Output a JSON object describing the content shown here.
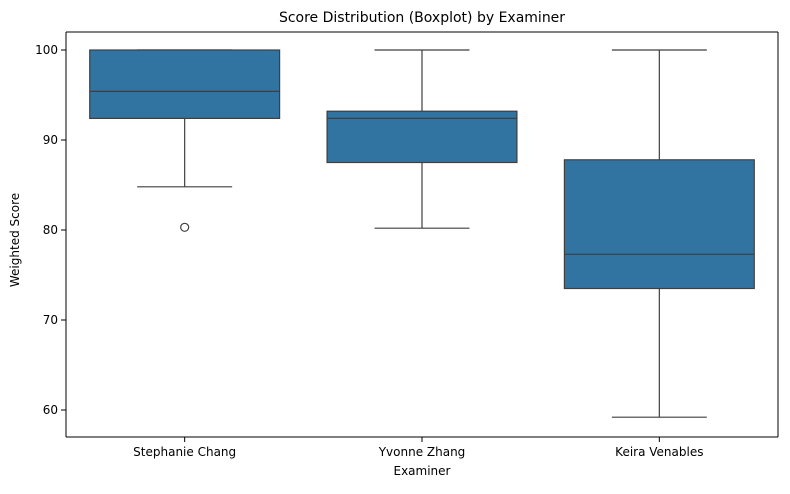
{
  "chart_data": {
    "type": "boxplot",
    "title": "Score Distribution (Boxplot) by Examiner",
    "xlabel": "Examiner",
    "ylabel": "Weighted Score",
    "ylim": [
      57.0,
      102.0
    ],
    "yticks": [
      60,
      70,
      80,
      90,
      100
    ],
    "grid": false,
    "legend": "none",
    "color": "#3274a1",
    "edge_color": "#3f3f3f",
    "categories": [
      "Stephanie Chang",
      "Yvonne Zhang",
      "Keira Venables"
    ],
    "boxes": [
      {
        "category": "Stephanie Chang",
        "whisker_low": 84.8,
        "q1": 92.4,
        "median": 95.4,
        "q3": 100.0,
        "whisker_high": 100.0,
        "outliers": [
          80.3
        ]
      },
      {
        "category": "Yvonne Zhang",
        "whisker_low": 80.2,
        "q1": 87.5,
        "median": 92.4,
        "q3": 93.2,
        "whisker_high": 100.0,
        "outliers": []
      },
      {
        "category": "Keira Venables",
        "whisker_low": 59.2,
        "q1": 73.5,
        "median": 77.3,
        "q3": 87.8,
        "whisker_high": 100.0,
        "outliers": []
      }
    ]
  }
}
